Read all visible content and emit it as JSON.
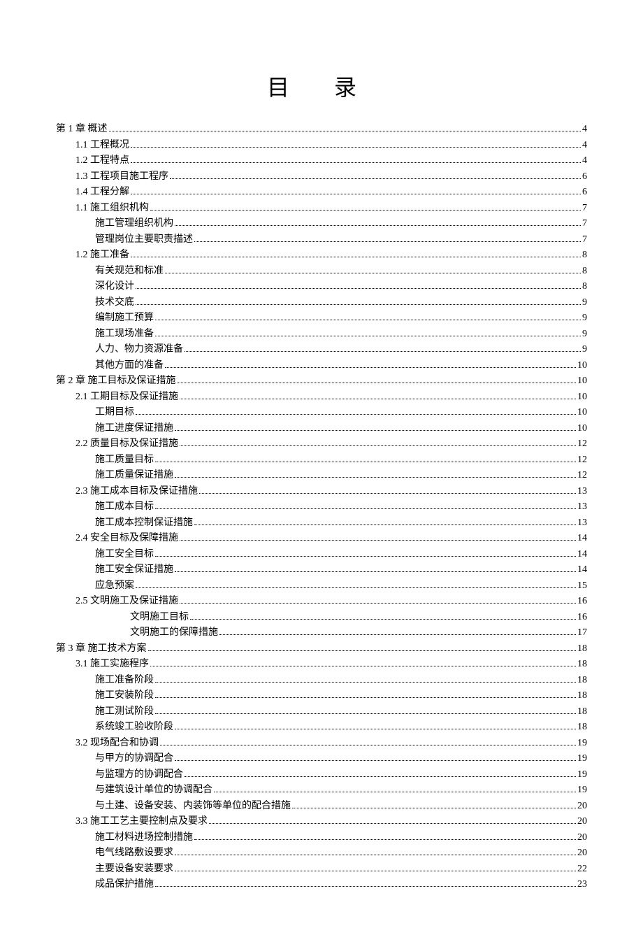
{
  "title": "目 录",
  "toc": [
    {
      "label": "第 1 章  概述",
      "page": "4",
      "indent": 0
    },
    {
      "label": "1.1  工程概况",
      "page": "4",
      "indent": 1
    },
    {
      "label": "1.2  工程特点",
      "page": "4",
      "indent": 1
    },
    {
      "label": "1.3  工程项目施工程序",
      "page": "6",
      "indent": 1
    },
    {
      "label": "1.4  工程分解",
      "page": "6",
      "indent": 1
    },
    {
      "label": "1.1  施工组织机构",
      "page": "7",
      "indent": 1
    },
    {
      "label": "施工管理组织机构",
      "page": "7",
      "indent": 2
    },
    {
      "label": "管理岗位主要职责描述",
      "page": "7",
      "indent": 2
    },
    {
      "label": "1.2  施工准备",
      "page": "8",
      "indent": 1
    },
    {
      "label": "有关规范和标准",
      "page": "8",
      "indent": 2
    },
    {
      "label": "深化设计",
      "page": "8",
      "indent": 2
    },
    {
      "label": "技术交底",
      "page": "9",
      "indent": 2
    },
    {
      "label": "编制施工预算",
      "page": "9",
      "indent": 2
    },
    {
      "label": "施工现场准备",
      "page": "9",
      "indent": 2
    },
    {
      "label": "人力、物力资源准备",
      "page": "9",
      "indent": 2
    },
    {
      "label": "其他方面的准备",
      "page": "10",
      "indent": 2
    },
    {
      "label": "第 2 章  施工目标及保证措施",
      "page": "10",
      "indent": 0
    },
    {
      "label": "2.1  工期目标及保证措施",
      "page": "10",
      "indent": 1
    },
    {
      "label": "工期目标",
      "page": "10",
      "indent": 2
    },
    {
      "label": "施工进度保证措施",
      "page": "10",
      "indent": 2
    },
    {
      "label": "2.2  质量目标及保证措施",
      "page": "12",
      "indent": 1
    },
    {
      "label": "施工质量目标",
      "page": "12",
      "indent": 2
    },
    {
      "label": "施工质量保证措施",
      "page": "12",
      "indent": 2
    },
    {
      "label": "2.3  施工成本目标及保证措施",
      "page": "13",
      "indent": 1
    },
    {
      "label": "施工成本目标",
      "page": "13",
      "indent": 2
    },
    {
      "label": "施工成本控制保证措施",
      "page": "13",
      "indent": 2
    },
    {
      "label": "2.4  安全目标及保障措施",
      "page": "14",
      "indent": 1
    },
    {
      "label": "施工安全目标",
      "page": "14",
      "indent": 2
    },
    {
      "label": "施工安全保证措施",
      "page": "14",
      "indent": 2
    },
    {
      "label": "应急预案",
      "page": "15",
      "indent": 2
    },
    {
      "label": "2.5  文明施工及保证措施",
      "page": "16",
      "indent": 1
    },
    {
      "label": "文明施工目标",
      "page": "16",
      "indent": 3
    },
    {
      "label": "文明施工的保障措施",
      "page": "17",
      "indent": 3
    },
    {
      "label": "第 3 章  施工技术方案",
      "page": "18",
      "indent": 0
    },
    {
      "label": "3.1  施工实施程序",
      "page": "18",
      "indent": 1
    },
    {
      "label": "施工准备阶段",
      "page": "18",
      "indent": 2
    },
    {
      "label": "施工安装阶段",
      "page": "18",
      "indent": 2
    },
    {
      "label": "施工测试阶段",
      "page": "18",
      "indent": 2
    },
    {
      "label": "系统竣工验收阶段",
      "page": "18",
      "indent": 2
    },
    {
      "label": "3.2  现场配合和协调",
      "page": "19",
      "indent": 1
    },
    {
      "label": "与甲方的协调配合",
      "page": "19",
      "indent": 2
    },
    {
      "label": "与监理方的协调配合",
      "page": "19",
      "indent": 2
    },
    {
      "label": "与建筑设计单位的协调配合",
      "page": "19",
      "indent": 2
    },
    {
      "label": "与土建、设备安装、内装饰等单位的配合措施",
      "page": "20",
      "indent": 2
    },
    {
      "label": "3.3  施工工艺主要控制点及要求",
      "page": "20",
      "indent": 1
    },
    {
      "label": "施工材料进场控制措施",
      "page": "20",
      "indent": 2
    },
    {
      "label": "电气线路敷设要求",
      "page": "20",
      "indent": 2
    },
    {
      "label": "主要设备安装要求",
      "page": "22",
      "indent": 2
    },
    {
      "label": "成品保护措施",
      "page": "23",
      "indent": 2
    }
  ]
}
